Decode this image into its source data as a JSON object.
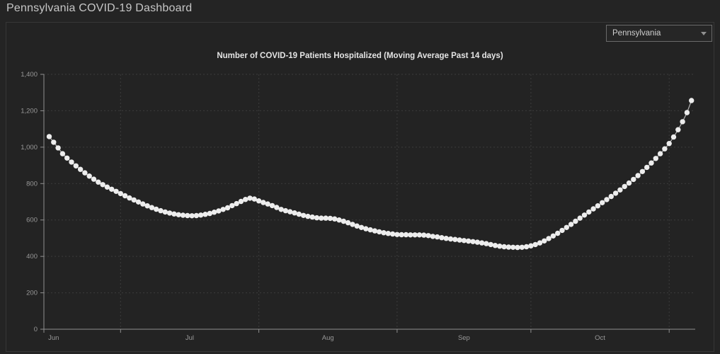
{
  "header": {
    "title": "Pennsylvania COVID-19 Dashboard"
  },
  "controls": {
    "state_selector": {
      "value": "Pennsylvania",
      "icon": "chevron-down-icon"
    }
  },
  "colors": {
    "background": "#242424",
    "panel": "#232323",
    "panel_border": "#373737",
    "grid": "#3c3c3c",
    "axis": "#8f8f8f",
    "axis_text": "#989898",
    "series_line": "#b5b5b5",
    "marker_fill": "#ededed",
    "chart_title": "#e4e4e4",
    "header_text": "#c6c6c6"
  },
  "chart_data": {
    "type": "line",
    "title": "Number of COVID-19 Patients Hospitalized (Moving Average Past 14 days)",
    "marker": "circle",
    "grid": "dashed",
    "ylim": [
      0,
      1400
    ],
    "y_tick_labels": [
      "0",
      "200",
      "400",
      "600",
      "800",
      "1,000",
      "1,200",
      "1,400"
    ],
    "x_tick_labels": [
      "Jun",
      "Jul",
      "Aug",
      "Sep",
      "Oct"
    ],
    "x_cadence": "daily",
    "x_start": "mid-June",
    "x_end": "early-November",
    "x_month_start_day_index": [
      -14,
      16,
      47,
      78,
      108,
      139,
      169
    ],
    "series": [
      {
        "name": "COVID-19 Patients Hospitalized (14-day moving average)",
        "values": [
          1058,
          1027,
          996,
          964,
          940,
          918,
          897,
          878,
          859,
          841,
          824,
          808,
          794,
          781,
          769,
          757,
          745,
          733,
          721,
          710,
          699,
          688,
          678,
          668,
          659,
          651,
          644,
          638,
          633,
          629,
          626,
          624,
          623,
          624,
          627,
          631,
          636,
          643,
          650,
          658,
          667,
          679,
          690,
          702,
          713,
          720,
          715,
          705,
          696,
          688,
          679,
          669,
          658,
          651,
          645,
          639,
          632,
          625,
          620,
          616,
          612,
          610,
          610,
          609,
          606,
          600,
          593,
          585,
          576,
          567,
          559,
          552,
          546,
          540,
          535,
          530,
          526,
          523,
          520,
          519,
          519,
          518,
          518,
          518,
          517,
          514,
          510,
          507,
          503,
          499,
          496,
          493,
          490,
          487,
          484,
          481,
          478,
          474,
          470,
          465,
          460,
          456,
          453,
          451,
          450,
          449,
          450,
          453,
          458,
          465,
          474,
          485,
          498,
          512,
          527,
          543,
          559,
          576,
          593,
          610,
          627,
          644,
          661,
          678,
          695,
          712,
          729,
          747,
          765,
          784,
          803,
          823,
          844,
          866,
          889,
          913,
          938,
          964,
          991,
          1020,
          1056,
          1096,
          1140,
          1190,
          1256
        ]
      }
    ]
  }
}
